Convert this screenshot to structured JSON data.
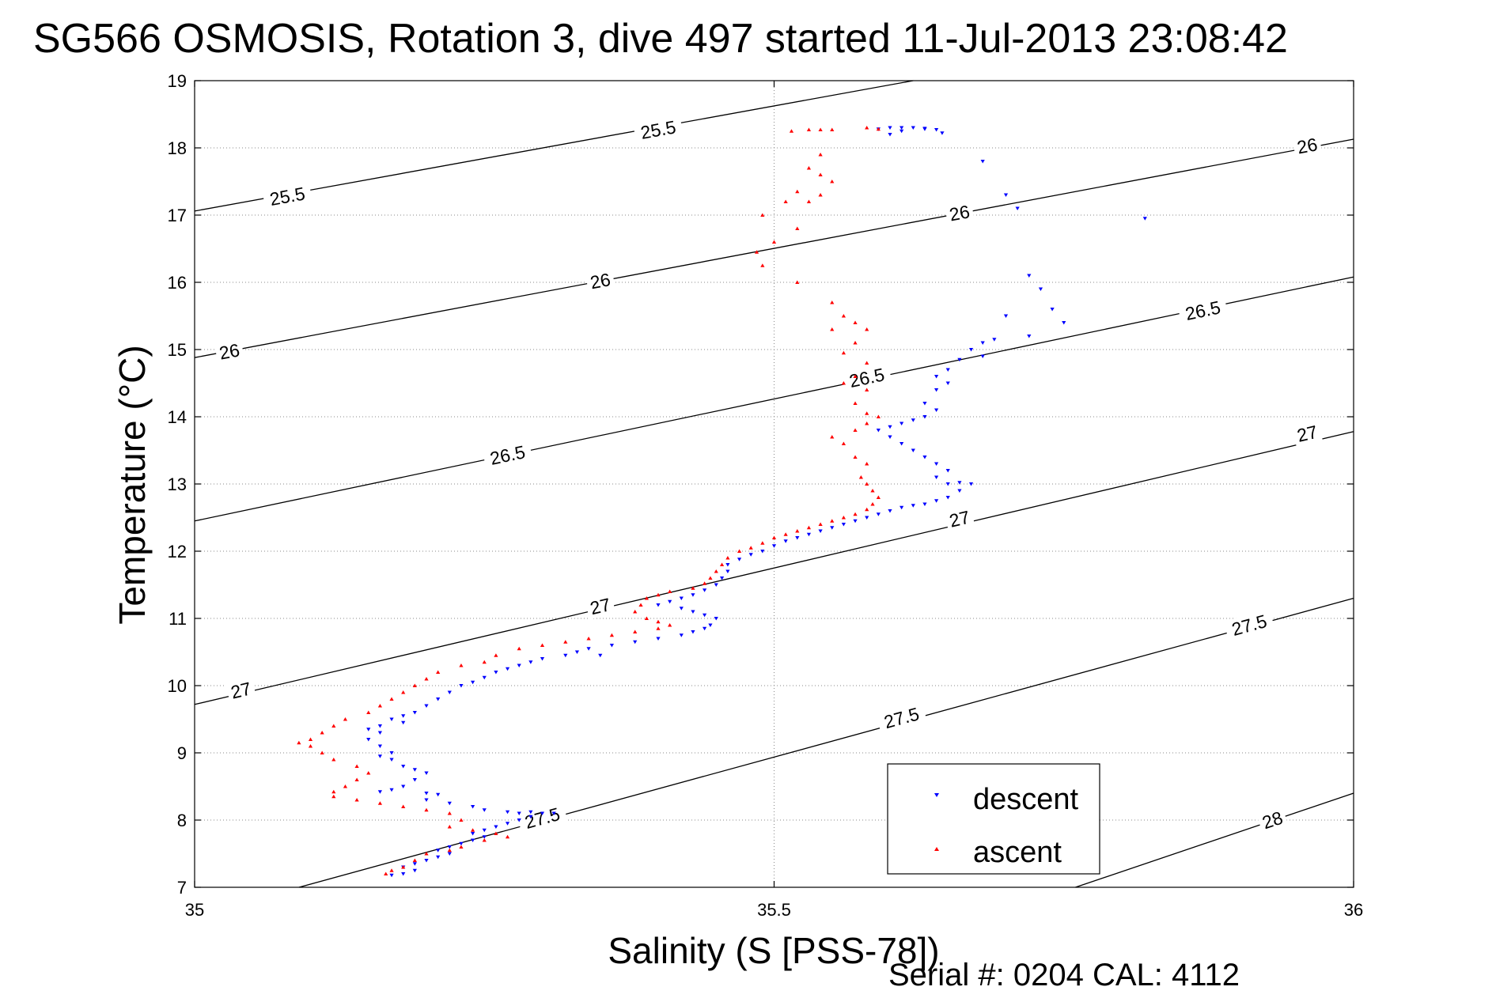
{
  "chart_data": {
    "type": "scatter",
    "title": "SG566 OSMOSIS, Rotation 3, dive 497 started 11-Jul-2013 23:08:42",
    "xlabel": "Salinity (S [PSS-78])",
    "ylabel": "Temperature (°C)",
    "footer": "Serial #: 0204  CAL: 4112",
    "xlim": [
      35,
      36
    ],
    "ylim": [
      7,
      19
    ],
    "x_ticks": [
      "35",
      "35.5",
      "36"
    ],
    "y_ticks": [
      "7",
      "8",
      "9",
      "10",
      "11",
      "12",
      "13",
      "14",
      "15",
      "16",
      "17",
      "18",
      "19"
    ],
    "grid": "dotted",
    "legend_position": "lower-right",
    "density_contours": [
      {
        "label": "25.5",
        "points": [
          [
            35.0,
            17.06
          ],
          [
            35.62,
            19.0
          ]
        ],
        "labels_at": [
          [
            35.08,
            17.28
          ],
          [
            35.4,
            18.27
          ]
        ]
      },
      {
        "label": "26",
        "points": [
          [
            35.0,
            14.88
          ],
          [
            36.0,
            18.13
          ]
        ],
        "labels_at": [
          [
            35.03,
            14.97
          ],
          [
            35.35,
            16.02
          ],
          [
            35.66,
            17.03
          ],
          [
            35.96,
            18.03
          ]
        ]
      },
      {
        "label": "26.5",
        "points": [
          [
            35.0,
            12.45
          ],
          [
            36.0,
            16.08
          ]
        ],
        "labels_at": [
          [
            35.27,
            13.43
          ],
          [
            35.58,
            14.58
          ],
          [
            35.87,
            15.58
          ]
        ]
      },
      {
        "label": "27",
        "points": [
          [
            35.0,
            9.72
          ],
          [
            36.0,
            13.78
          ]
        ],
        "labels_at": [
          [
            35.04,
            9.93
          ],
          [
            35.35,
            11.18
          ],
          [
            35.66,
            12.48
          ],
          [
            35.96,
            13.75
          ]
        ]
      },
      {
        "label": "27.5",
        "points": [
          [
            35.09,
            7.0
          ],
          [
            36.0,
            11.3
          ]
        ],
        "labels_at": [
          [
            35.3,
            8.03
          ],
          [
            35.61,
            9.52
          ],
          [
            35.91,
            10.9
          ]
        ]
      },
      {
        "label": "28",
        "points": [
          [
            35.76,
            7.0
          ],
          [
            36.0,
            8.4
          ]
        ],
        "labels_at": [
          [
            35.93,
            8.0
          ]
        ]
      }
    ],
    "series": [
      {
        "name": "descent",
        "color": "#0000ff",
        "marker": "triangle-down",
        "points": [
          [
            35.59,
            18.28
          ],
          [
            35.6,
            18.3
          ],
          [
            35.61,
            18.3
          ],
          [
            35.62,
            18.3
          ],
          [
            35.63,
            18.28
          ],
          [
            35.64,
            18.27
          ],
          [
            35.61,
            18.25
          ],
          [
            35.63,
            18.29
          ],
          [
            35.645,
            18.22
          ],
          [
            35.6,
            18.2
          ],
          [
            35.68,
            17.8
          ],
          [
            35.82,
            16.95
          ],
          [
            35.7,
            17.3
          ],
          [
            35.71,
            17.1
          ],
          [
            35.72,
            16.1
          ],
          [
            35.73,
            15.9
          ],
          [
            35.74,
            15.6
          ],
          [
            35.75,
            15.4
          ],
          [
            35.7,
            15.5
          ],
          [
            35.72,
            15.2
          ],
          [
            35.69,
            15.15
          ],
          [
            35.68,
            15.1
          ],
          [
            35.67,
            15.0
          ],
          [
            35.68,
            14.9
          ],
          [
            35.66,
            14.85
          ],
          [
            35.65,
            14.7
          ],
          [
            35.64,
            14.6
          ],
          [
            35.65,
            14.5
          ],
          [
            35.64,
            14.4
          ],
          [
            35.63,
            14.2
          ],
          [
            35.64,
            14.1
          ],
          [
            35.63,
            14.0
          ],
          [
            35.62,
            13.95
          ],
          [
            35.61,
            13.9
          ],
          [
            35.6,
            13.85
          ],
          [
            35.59,
            13.8
          ],
          [
            35.6,
            13.7
          ],
          [
            35.61,
            13.6
          ],
          [
            35.62,
            13.5
          ],
          [
            35.63,
            13.4
          ],
          [
            35.64,
            13.3
          ],
          [
            35.65,
            13.2
          ],
          [
            35.64,
            13.1
          ],
          [
            35.65,
            13.0
          ],
          [
            35.66,
            13.02
          ],
          [
            35.67,
            13.0
          ],
          [
            35.66,
            12.9
          ],
          [
            35.65,
            12.8
          ],
          [
            35.64,
            12.75
          ],
          [
            35.63,
            12.7
          ],
          [
            35.62,
            12.68
          ],
          [
            35.61,
            12.65
          ],
          [
            35.6,
            12.6
          ],
          [
            35.59,
            12.55
          ],
          [
            35.58,
            12.5
          ],
          [
            35.57,
            12.45
          ],
          [
            35.56,
            12.4
          ],
          [
            35.55,
            12.35
          ],
          [
            35.54,
            12.3
          ],
          [
            35.53,
            12.25
          ],
          [
            35.52,
            12.2
          ],
          [
            35.51,
            12.15
          ],
          [
            35.5,
            12.08
          ],
          [
            35.49,
            12.0
          ],
          [
            35.48,
            11.95
          ],
          [
            35.47,
            11.88
          ],
          [
            35.46,
            11.8
          ],
          [
            35.46,
            11.7
          ],
          [
            35.455,
            11.6
          ],
          [
            35.45,
            11.5
          ],
          [
            35.44,
            11.42
          ],
          [
            35.43,
            11.35
          ],
          [
            35.42,
            11.3
          ],
          [
            35.41,
            11.25
          ],
          [
            35.4,
            11.2
          ],
          [
            35.42,
            11.15
          ],
          [
            35.43,
            11.1
          ],
          [
            35.44,
            11.05
          ],
          [
            35.45,
            11.0
          ],
          [
            35.445,
            10.9
          ],
          [
            35.44,
            10.85
          ],
          [
            35.43,
            10.8
          ],
          [
            35.42,
            10.75
          ],
          [
            35.4,
            10.7
          ],
          [
            35.38,
            10.65
          ],
          [
            35.36,
            10.6
          ],
          [
            35.34,
            10.55
          ],
          [
            35.33,
            10.5
          ],
          [
            35.32,
            10.45
          ],
          [
            35.3,
            10.4
          ],
          [
            35.29,
            10.35
          ],
          [
            35.28,
            10.3
          ],
          [
            35.27,
            10.25
          ],
          [
            35.26,
            10.2
          ],
          [
            35.25,
            10.12
          ],
          [
            35.24,
            10.05
          ],
          [
            35.23,
            10.0
          ],
          [
            35.35,
            10.45
          ],
          [
            35.22,
            9.9
          ],
          [
            35.21,
            9.8
          ],
          [
            35.2,
            9.7
          ],
          [
            35.19,
            9.6
          ],
          [
            35.18,
            9.55
          ],
          [
            35.17,
            9.5
          ],
          [
            35.18,
            9.45
          ],
          [
            35.16,
            9.4
          ],
          [
            35.15,
            9.35
          ],
          [
            35.16,
            9.3
          ],
          [
            35.15,
            9.2
          ],
          [
            35.16,
            9.1
          ],
          [
            35.17,
            9.0
          ],
          [
            35.16,
            8.95
          ],
          [
            35.17,
            8.9
          ],
          [
            35.18,
            8.8
          ],
          [
            35.19,
            8.75
          ],
          [
            35.2,
            8.7
          ],
          [
            35.19,
            8.6
          ],
          [
            35.18,
            8.5
          ],
          [
            35.17,
            8.45
          ],
          [
            35.16,
            8.42
          ],
          [
            35.2,
            8.4
          ],
          [
            35.21,
            8.38
          ],
          [
            35.2,
            8.3
          ],
          [
            35.22,
            8.25
          ],
          [
            35.24,
            8.2
          ],
          [
            35.25,
            8.15
          ],
          [
            35.27,
            8.12
          ],
          [
            35.28,
            8.1
          ],
          [
            35.29,
            8.12
          ],
          [
            35.3,
            8.1
          ],
          [
            35.31,
            8.1
          ],
          [
            35.29,
            8.05
          ],
          [
            35.28,
            8.0
          ],
          [
            35.27,
            7.95
          ],
          [
            35.26,
            7.9
          ],
          [
            35.25,
            7.85
          ],
          [
            35.24,
            7.8
          ],
          [
            35.25,
            7.75
          ],
          [
            35.24,
            7.7
          ],
          [
            35.23,
            7.65
          ],
          [
            35.22,
            7.6
          ],
          [
            35.21,
            7.55
          ],
          [
            35.22,
            7.5
          ],
          [
            35.21,
            7.45
          ],
          [
            35.2,
            7.4
          ],
          [
            35.19,
            7.35
          ],
          [
            35.18,
            7.3
          ],
          [
            35.19,
            7.25
          ],
          [
            35.18,
            7.2
          ],
          [
            35.17,
            7.18
          ]
        ]
      },
      {
        "name": "ascent",
        "color": "#ff0000",
        "marker": "triangle-up",
        "points": [
          [
            35.515,
            18.25
          ],
          [
            35.53,
            18.27
          ],
          [
            35.54,
            18.27
          ],
          [
            35.55,
            18.27
          ],
          [
            35.58,
            18.3
          ],
          [
            35.59,
            18.28
          ],
          [
            35.54,
            17.9
          ],
          [
            35.53,
            17.7
          ],
          [
            35.54,
            17.6
          ],
          [
            35.55,
            17.5
          ],
          [
            35.52,
            17.35
          ],
          [
            35.54,
            17.3
          ],
          [
            35.51,
            17.2
          ],
          [
            35.53,
            17.2
          ],
          [
            35.49,
            17.0
          ],
          [
            35.52,
            16.8
          ],
          [
            35.5,
            16.6
          ],
          [
            35.485,
            16.45
          ],
          [
            35.49,
            16.25
          ],
          [
            35.52,
            16.0
          ],
          [
            35.55,
            15.7
          ],
          [
            35.56,
            15.5
          ],
          [
            35.55,
            15.3
          ],
          [
            35.57,
            15.4
          ],
          [
            35.58,
            15.3
          ],
          [
            35.57,
            15.1
          ],
          [
            35.56,
            14.95
          ],
          [
            35.58,
            14.8
          ],
          [
            35.57,
            14.6
          ],
          [
            35.56,
            14.5
          ],
          [
            35.58,
            14.4
          ],
          [
            35.57,
            14.2
          ],
          [
            35.58,
            14.05
          ],
          [
            35.59,
            14.0
          ],
          [
            35.58,
            13.9
          ],
          [
            35.57,
            13.8
          ],
          [
            35.55,
            13.7
          ],
          [
            35.56,
            13.6
          ],
          [
            35.57,
            13.4
          ],
          [
            35.58,
            13.3
          ],
          [
            35.575,
            13.1
          ],
          [
            35.58,
            13.0
          ],
          [
            35.585,
            12.9
          ],
          [
            35.59,
            12.8
          ],
          [
            35.585,
            12.7
          ],
          [
            35.58,
            12.62
          ],
          [
            35.57,
            12.55
          ],
          [
            35.56,
            12.5
          ],
          [
            35.55,
            12.45
          ],
          [
            35.54,
            12.4
          ],
          [
            35.53,
            12.35
          ],
          [
            35.52,
            12.3
          ],
          [
            35.51,
            12.25
          ],
          [
            35.5,
            12.2
          ],
          [
            35.49,
            12.12
          ],
          [
            35.48,
            12.05
          ],
          [
            35.47,
            12.0
          ],
          [
            35.46,
            11.9
          ],
          [
            35.455,
            11.8
          ],
          [
            35.45,
            11.7
          ],
          [
            35.445,
            11.6
          ],
          [
            35.44,
            11.52
          ],
          [
            35.43,
            11.45
          ],
          [
            35.41,
            11.4
          ],
          [
            35.4,
            11.35
          ],
          [
            35.39,
            11.3
          ],
          [
            35.385,
            11.2
          ],
          [
            35.38,
            11.1
          ],
          [
            35.39,
            11.0
          ],
          [
            35.4,
            10.95
          ],
          [
            35.41,
            10.9
          ],
          [
            35.4,
            10.85
          ],
          [
            35.38,
            10.8
          ],
          [
            35.36,
            10.75
          ],
          [
            35.34,
            10.7
          ],
          [
            35.32,
            10.65
          ],
          [
            35.3,
            10.6
          ],
          [
            35.28,
            10.55
          ],
          [
            35.26,
            10.45
          ],
          [
            35.25,
            10.35
          ],
          [
            35.23,
            10.3
          ],
          [
            35.21,
            10.2
          ],
          [
            35.2,
            10.1
          ],
          [
            35.19,
            10.0
          ],
          [
            35.18,
            9.9
          ],
          [
            35.17,
            9.8
          ],
          [
            35.16,
            9.7
          ],
          [
            35.15,
            9.6
          ],
          [
            35.13,
            9.5
          ],
          [
            35.12,
            9.4
          ],
          [
            35.11,
            9.3
          ],
          [
            35.1,
            9.2
          ],
          [
            35.09,
            9.15
          ],
          [
            35.1,
            9.1
          ],
          [
            35.11,
            9.0
          ],
          [
            35.12,
            8.9
          ],
          [
            35.14,
            8.8
          ],
          [
            35.15,
            8.7
          ],
          [
            35.14,
            8.6
          ],
          [
            35.13,
            8.5
          ],
          [
            35.12,
            8.42
          ],
          [
            35.12,
            8.35
          ],
          [
            35.14,
            8.3
          ],
          [
            35.16,
            8.25
          ],
          [
            35.18,
            8.2
          ],
          [
            35.2,
            8.15
          ],
          [
            35.22,
            8.1
          ],
          [
            35.23,
            8.0
          ],
          [
            35.22,
            7.9
          ],
          [
            35.24,
            7.85
          ],
          [
            35.26,
            7.8
          ],
          [
            35.27,
            7.75
          ],
          [
            35.25,
            7.7
          ],
          [
            35.23,
            7.6
          ],
          [
            35.22,
            7.55
          ],
          [
            35.2,
            7.5
          ],
          [
            35.19,
            7.4
          ],
          [
            35.18,
            7.3
          ],
          [
            35.17,
            7.25
          ],
          [
            35.165,
            7.2
          ]
        ]
      }
    ]
  }
}
